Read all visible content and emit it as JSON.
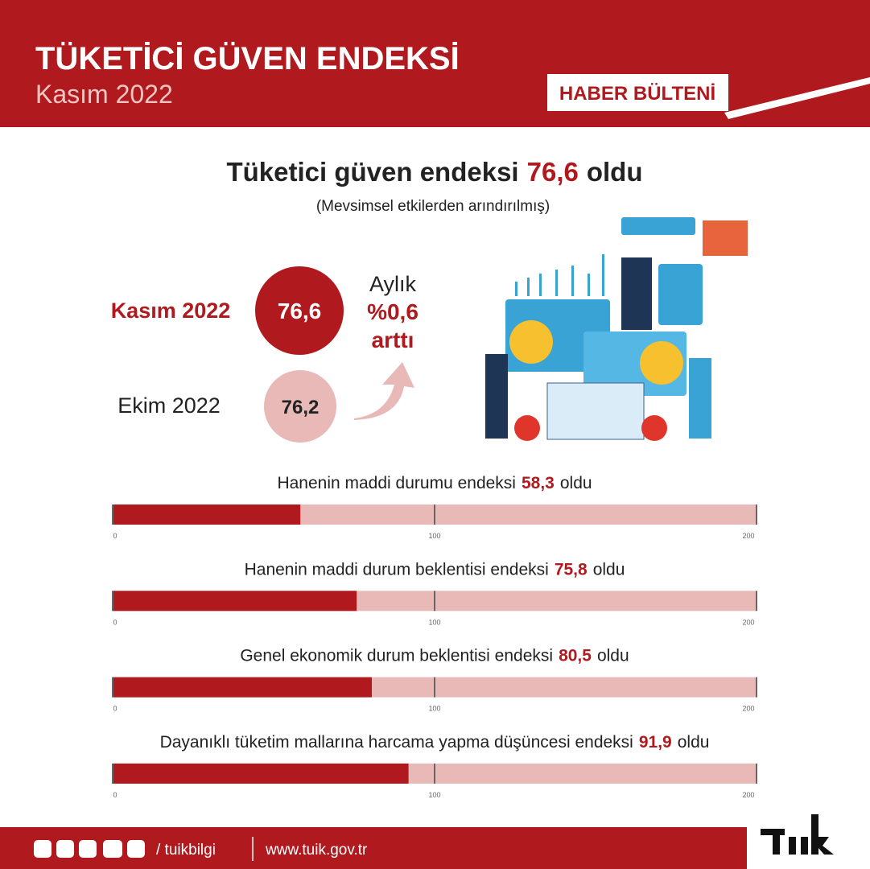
{
  "header": {
    "title": "TÜKETİCİ GÜVEN ENDEKSİ",
    "subtitle": "Kasım 2022",
    "badge": "HABER BÜLTENİ"
  },
  "headline": {
    "text": "Tüketici güven endeksi",
    "value": "76,6",
    "suffix": "oldu",
    "note": "(Mevsimsel etkilerden arındırılmış)"
  },
  "comparison": {
    "current": {
      "label": "Kasım 2022",
      "value": "76,6"
    },
    "previous": {
      "label": "Ekim 2022",
      "value": "76,2"
    },
    "change": [
      "Aylık",
      "%0,6",
      "arttı"
    ]
  },
  "chart_data": [
    {
      "type": "bar",
      "orientation": "horizontal",
      "title": "Hanenin maddi durumu endeksi",
      "title_suffix": "oldu",
      "values": [
        58.3
      ],
      "value_labels": [
        "58,3"
      ],
      "xlim": [
        0,
        200
      ],
      "xticks": [
        0,
        100,
        200
      ],
      "color": "#b0191d",
      "track_color": "#e8b9b6"
    },
    {
      "type": "bar",
      "orientation": "horizontal",
      "title": "Hanenin maddi durum beklentisi endeksi",
      "title_suffix": "oldu",
      "values": [
        75.8
      ],
      "value_labels": [
        "75,8"
      ],
      "xlim": [
        0,
        200
      ],
      "xticks": [
        0,
        100,
        200
      ],
      "color": "#b0191d",
      "track_color": "#e8b9b6"
    },
    {
      "type": "bar",
      "orientation": "horizontal",
      "title": "Genel ekonomik durum beklentisi endeksi",
      "title_suffix": "oldu",
      "values": [
        80.5
      ],
      "value_labels": [
        "80,5"
      ],
      "xlim": [
        0,
        200
      ],
      "xticks": [
        0,
        100,
        200
      ],
      "color": "#b0191d",
      "track_color": "#e8b9b6"
    },
    {
      "type": "bar",
      "orientation": "horizontal",
      "title": "Dayanıklı tüketim mallarına harcama yapma düşüncesi endeksi",
      "title_suffix": "oldu",
      "values": [
        91.9
      ],
      "value_labels": [
        "91,9"
      ],
      "xlim": [
        0,
        200
      ],
      "xticks": [
        0,
        100,
        200
      ],
      "color": "#b0191d",
      "track_color": "#e8b9b6"
    }
  ],
  "footer": {
    "handle": "/ tuikbilgi",
    "url": "www.tuik.gov.tr"
  }
}
